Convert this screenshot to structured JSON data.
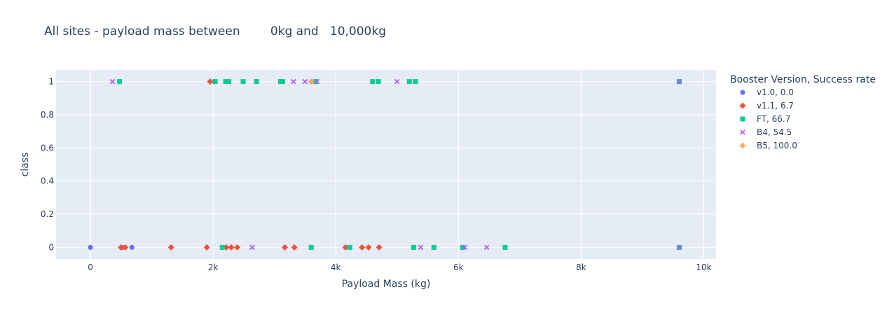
{
  "chart_data": {
    "type": "scatter",
    "title": "All sites - payload mass between        0kg and   10,000kg",
    "xlabel": "Payload Mass (kg)",
    "ylabel": "class",
    "xlim": [
      -560,
      10200
    ],
    "ylim": [
      -0.07,
      1.07
    ],
    "x_ticks": [
      0,
      2000,
      4000,
      6000,
      8000,
      10000
    ],
    "x_tick_labels": [
      "0",
      "2k",
      "4k",
      "6k",
      "8k",
      "10k"
    ],
    "y_ticks": [
      0,
      0.2,
      0.4,
      0.6,
      0.8,
      1
    ],
    "y_tick_labels": [
      "0",
      "0.2",
      "0.4",
      "0.6",
      "0.8",
      "1"
    ],
    "grid": true,
    "legend_title": "Booster Version, Success rate",
    "legend_position": "right",
    "series": [
      {
        "name": "v1.0, 0.0",
        "color": "#636efa",
        "symbol": "circle",
        "points": [
          [
            0,
            0
          ],
          [
            0,
            0
          ],
          [
            525,
            0
          ],
          [
            677,
            0
          ]
        ]
      },
      {
        "name": "v1.1, 6.7",
        "color": "#ef553b",
        "symbol": "diamond",
        "points": [
          [
            500,
            0
          ],
          [
            570,
            0
          ],
          [
            1316,
            0
          ],
          [
            1898,
            0
          ],
          [
            1952,
            1
          ],
          [
            2216,
            0
          ],
          [
            2296,
            0
          ],
          [
            2395,
            0
          ],
          [
            3170,
            0
          ],
          [
            3325,
            0
          ],
          [
            4159,
            0
          ],
          [
            4428,
            0
          ],
          [
            4535,
            0
          ],
          [
            4707,
            0
          ]
        ]
      },
      {
        "name": "FT, 66.7",
        "color": "#00cc96",
        "symbol": "square",
        "points": [
          [
            475,
            1
          ],
          [
            2034,
            1
          ],
          [
            2205,
            1
          ],
          [
            2257,
            1
          ],
          [
            2490,
            1
          ],
          [
            2708,
            1
          ],
          [
            3100,
            1
          ],
          [
            3136,
            1
          ],
          [
            3669,
            1
          ],
          [
            4600,
            1
          ],
          [
            4696,
            1
          ],
          [
            5200,
            1
          ],
          [
            5300,
            1
          ],
          [
            2150,
            0
          ],
          [
            3600,
            0
          ],
          [
            4230,
            0
          ],
          [
            5271,
            0
          ],
          [
            5600,
            0
          ],
          [
            6070,
            0
          ],
          [
            6761,
            0
          ],
          [
            9600,
            1
          ],
          [
            9600,
            0
          ]
        ]
      },
      {
        "name": "B4, 54.5",
        "color": "#ab63fa",
        "symbol": "x",
        "points": [
          [
            362,
            1
          ],
          [
            3310,
            1
          ],
          [
            3500,
            1
          ],
          [
            3696,
            1
          ],
          [
            5000,
            1
          ],
          [
            2638,
            0
          ],
          [
            5384,
            0
          ],
          [
            6104,
            0
          ],
          [
            6460,
            0
          ],
          [
            9600,
            1
          ],
          [
            9600,
            0
          ]
        ]
      },
      {
        "name": "B5, 100.0",
        "color": "#ffa15a",
        "symbol": "cross",
        "points": [
          [
            3600,
            1
          ]
        ]
      }
    ]
  }
}
